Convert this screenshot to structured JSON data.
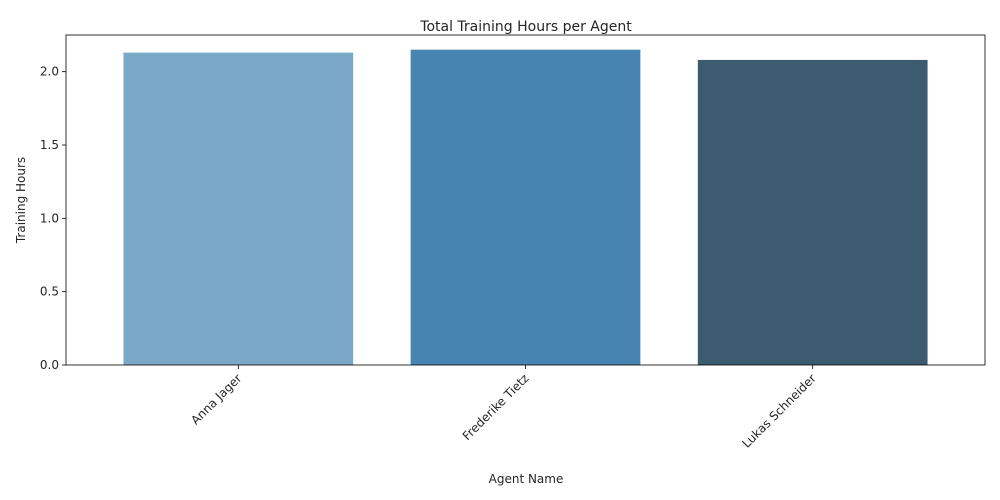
{
  "chart_data": {
    "type": "bar",
    "title": "Total Training Hours per Agent",
    "xlabel": "Agent Name",
    "ylabel": "Training Hours",
    "categories": [
      "Anna Jager",
      "Frederike Tietz",
      "Lukas Schneider"
    ],
    "values": [
      2.13,
      2.15,
      2.08
    ],
    "colors": [
      "#7ba7c9",
      "#4884b1",
      "#3c5a70"
    ],
    "ylim": [
      0,
      2.25
    ],
    "yticks": [
      "0.0",
      "0.5",
      "1.0",
      "1.5",
      "2.0"
    ],
    "grid": false,
    "legend": "none",
    "xtick_rotation": 45
  }
}
